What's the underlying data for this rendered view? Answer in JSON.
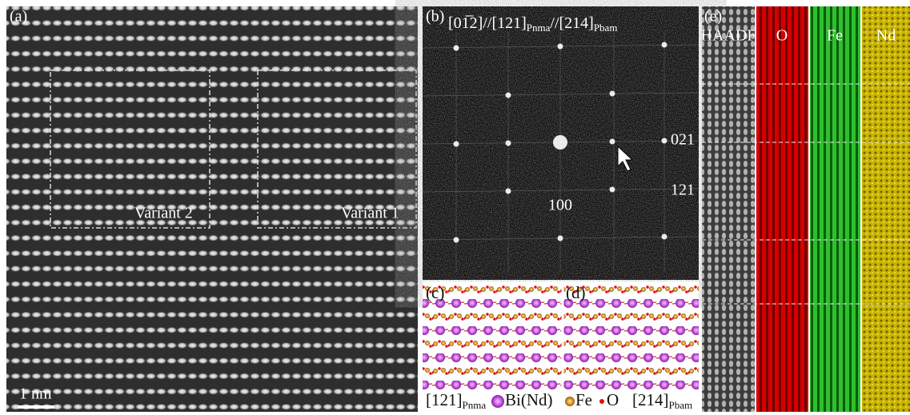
{
  "panels": {
    "a": {
      "label": "(a)",
      "variants": [
        "Variant 2",
        "Variant 1"
      ],
      "scale_bar": "1 nm"
    },
    "b": {
      "label": "(b)",
      "zone_axis": [
        "[01̅2]",
        "//[121]",
        "Pnma",
        "//[214]",
        "Pbam"
      ],
      "spots": [
        "021",
        "121",
        "100"
      ]
    },
    "c": {
      "label": "(c)",
      "axis": "[121]",
      "axis_sub": "Pnma"
    },
    "d": {
      "label": "(d)",
      "axis": "[214]",
      "axis_sub": "Pbam"
    },
    "e": {
      "label": "(e)",
      "channels": [
        "HAADF",
        "O",
        "Fe",
        "Nd"
      ]
    }
  },
  "legend": [
    "Bi(Nd)",
    "Fe",
    "O"
  ]
}
